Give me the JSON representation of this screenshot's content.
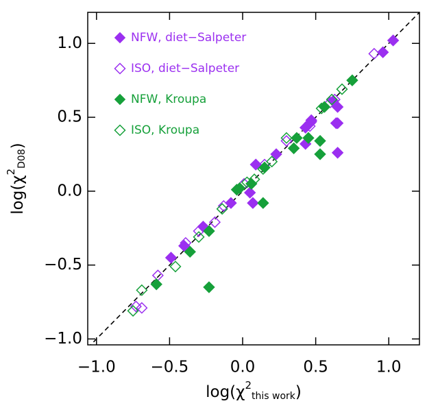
{
  "chart_data": {
    "type": "scatter",
    "x_label": {
      "prefix": "log(χ",
      "sup": "2",
      "sub": "this work",
      "suffix": ")"
    },
    "y_label": {
      "prefix": "log(χ",
      "sup": "2",
      "sub": "D08",
      "suffix": ")"
    },
    "xlim": [
      -1.06,
      1.21
    ],
    "ylim": [
      -1.04,
      1.21
    ],
    "xticks": [
      {
        "value": -1.0,
        "label": "−1.0"
      },
      {
        "value": -0.5,
        "label": "−0.5"
      },
      {
        "value": 0.0,
        "label": "0.0"
      },
      {
        "value": 0.5,
        "label": "0.5"
      },
      {
        "value": 1.0,
        "label": "1.0"
      }
    ],
    "yticks": [
      {
        "value": -1.0,
        "label": "−1.0"
      },
      {
        "value": -0.5,
        "label": "−0.5"
      },
      {
        "value": 0.0,
        "label": "0.0"
      },
      {
        "value": 0.5,
        "label": "0.5"
      },
      {
        "value": 1.0,
        "label": "1.0"
      }
    ],
    "legend": "upper left",
    "series": [
      {
        "name": "NFW, diet−Salpeter",
        "color": "#9b2ff0",
        "filled": true,
        "x": [
          1.03,
          0.96,
          0.65,
          0.47,
          0.46,
          0.43,
          0.65,
          0.64,
          0.43,
          0.65,
          0.23,
          0.09,
          0.05,
          0.07,
          -0.08,
          -0.27,
          -0.4,
          -0.49,
          0.62
        ],
        "values": [
          1.02,
          0.94,
          0.46,
          0.48,
          0.46,
          0.43,
          0.57,
          0.46,
          0.32,
          0.26,
          0.25,
          0.18,
          -0.01,
          -0.08,
          -0.08,
          -0.24,
          -0.37,
          -0.45,
          0.61
        ]
      },
      {
        "name": "ISO, diet−Salpeter",
        "color": "#9b2ff0",
        "filled": false,
        "x": [
          0.9,
          0.63,
          0.6,
          0.47,
          0.46,
          0.3,
          0.15,
          0.01,
          -0.13,
          -0.19,
          -0.3,
          -0.39,
          -0.58,
          -0.69,
          -0.73
        ],
        "values": [
          0.93,
          0.62,
          0.6,
          0.47,
          0.44,
          0.34,
          0.18,
          0.05,
          -0.1,
          -0.21,
          -0.27,
          -0.35,
          -0.57,
          -0.79,
          -0.78
        ]
      },
      {
        "name": "NFW, Kroupa",
        "color": "#16a03a",
        "filled": true,
        "x": [
          0.75,
          0.56,
          0.45,
          0.37,
          0.53,
          0.53,
          0.35,
          0.15,
          0.14,
          -0.02,
          -0.04,
          -0.23,
          -0.36,
          -0.59,
          -0.23,
          0.06
        ],
        "values": [
          0.75,
          0.57,
          0.36,
          0.36,
          0.34,
          0.25,
          0.29,
          0.16,
          -0.08,
          0.02,
          0.01,
          -0.27,
          -0.41,
          -0.63,
          -0.65,
          0.05
        ]
      },
      {
        "name": "ISO, Kroupa",
        "color": "#16a03a",
        "filled": false,
        "x": [
          0.68,
          0.61,
          0.54,
          0.3,
          0.2,
          0.14,
          0.08,
          0.03,
          -0.14,
          -0.3,
          -0.46,
          -0.69,
          -0.75
        ],
        "values": [
          0.69,
          0.62,
          0.56,
          0.36,
          0.2,
          0.15,
          0.08,
          0.06,
          -0.12,
          -0.31,
          -0.51,
          -0.67,
          -0.81
        ]
      }
    ]
  }
}
